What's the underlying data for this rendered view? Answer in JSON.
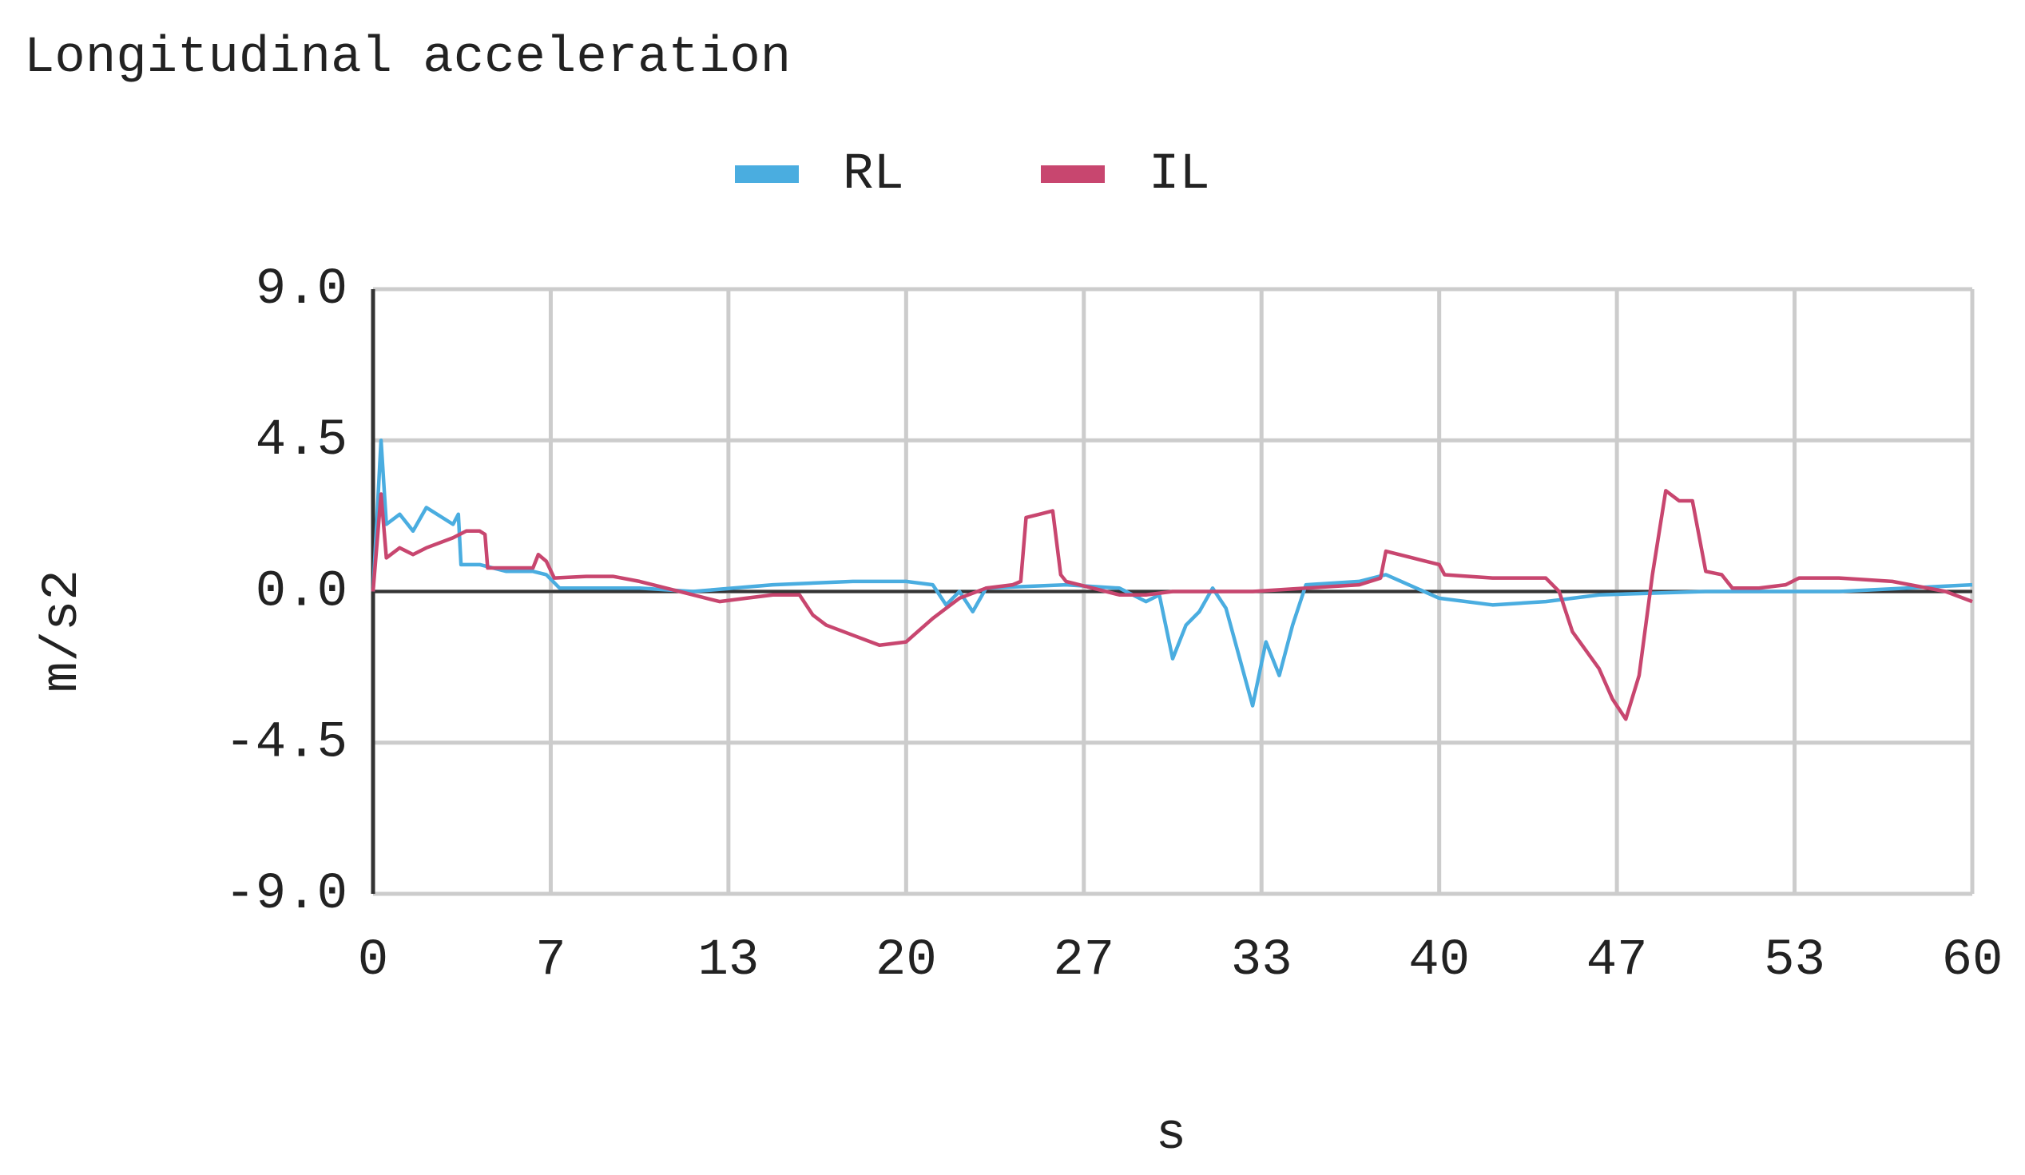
{
  "chart_data": {
    "type": "line",
    "title": "Longitudinal acceleration",
    "x_label": "s",
    "y_label": "m/s2",
    "xlim": [
      0,
      60
    ],
    "ylim": [
      -9,
      9
    ],
    "xticks": [
      0,
      {
        "value": 6.667,
        "label": "7"
      },
      {
        "value": 13.333,
        "label": "13"
      },
      20,
      {
        "value": 26.667,
        "label": "27"
      },
      {
        "value": 33.333,
        "label": "33"
      },
      40,
      {
        "value": 46.667,
        "label": "47"
      },
      {
        "value": 53.333,
        "label": "53"
      },
      60
    ],
    "yticks": [
      {
        "value": -9,
        "label": "-9.0"
      },
      -4.5,
      {
        "value": 0,
        "label": "0.0"
      },
      4.5,
      {
        "value": 9,
        "label": "9.0"
      }
    ],
    "grid": true,
    "series": [
      {
        "name": "RL",
        "color": "#4aade0",
        "x": [
          0,
          0.3,
          0.5,
          1,
          1.5,
          2,
          3,
          3.2,
          3.3,
          4,
          5,
          6,
          6.5,
          7,
          10,
          12,
          15,
          18,
          20,
          21,
          21.5,
          22,
          22.5,
          23,
          26,
          28,
          29,
          29.5,
          30,
          30.5,
          31,
          31.5,
          32,
          33,
          33.5,
          34,
          34.5,
          35,
          37,
          38,
          40,
          42,
          44,
          46,
          50,
          55,
          60
        ],
        "values": [
          0,
          4.5,
          2.0,
          2.3,
          1.8,
          2.5,
          2.0,
          2.3,
          0.8,
          0.8,
          0.6,
          0.6,
          0.5,
          0.1,
          0.1,
          0.0,
          0.2,
          0.3,
          0.3,
          0.2,
          -0.4,
          0.0,
          -0.6,
          0.1,
          0.2,
          0.1,
          -0.3,
          -0.1,
          -2.0,
          -1.0,
          -0.6,
          0.1,
          -0.5,
          -3.4,
          -1.5,
          -2.5,
          -1.0,
          0.2,
          0.3,
          0.5,
          -0.2,
          -0.4,
          -0.3,
          -0.1,
          0.0,
          0.0,
          0.2
        ]
      },
      {
        "name": "IL",
        "color": "#c8466f",
        "x": [
          0,
          0.3,
          0.5,
          1,
          1.5,
          2,
          3,
          3.5,
          4,
          4.2,
          4.3,
          5,
          6,
          6.2,
          6.5,
          6.8,
          8,
          9,
          10,
          11,
          12,
          13,
          14,
          15,
          16,
          16.5,
          17,
          18,
          19,
          20,
          21,
          22,
          23,
          24,
          24.3,
          24.5,
          25,
          25.5,
          25.8,
          26,
          27,
          28,
          29,
          30,
          33,
          35,
          37,
          37.8,
          38,
          39,
          40,
          40.2,
          42,
          44,
          44.5,
          45,
          46,
          46.5,
          47,
          47.5,
          48,
          48.5,
          49,
          49.5,
          50,
          50.6,
          51,
          52,
          53,
          53.5,
          55,
          57,
          59,
          60
        ],
        "values": [
          0,
          2.9,
          1.0,
          1.3,
          1.1,
          1.3,
          1.6,
          1.8,
          1.8,
          1.7,
          0.7,
          0.7,
          0.7,
          1.1,
          0.9,
          0.4,
          0.45,
          0.45,
          0.3,
          0.1,
          -0.1,
          -0.3,
          -0.2,
          -0.1,
          -0.1,
          -0.7,
          -1.0,
          -1.3,
          -1.6,
          -1.5,
          -0.8,
          -0.2,
          0.1,
          0.2,
          0.3,
          2.2,
          2.3,
          2.4,
          0.5,
          0.3,
          0.1,
          -0.1,
          -0.1,
          0.0,
          0.0,
          0.1,
          0.2,
          0.4,
          1.2,
          1.0,
          0.8,
          0.5,
          0.4,
          0.4,
          0.0,
          -1.2,
          -2.3,
          -3.2,
          -3.8,
          -2.5,
          0.5,
          3.0,
          2.7,
          2.7,
          0.6,
          0.5,
          0.1,
          0.1,
          0.2,
          0.4,
          0.4,
          0.3,
          0.0,
          -0.3
        ]
      }
    ]
  }
}
